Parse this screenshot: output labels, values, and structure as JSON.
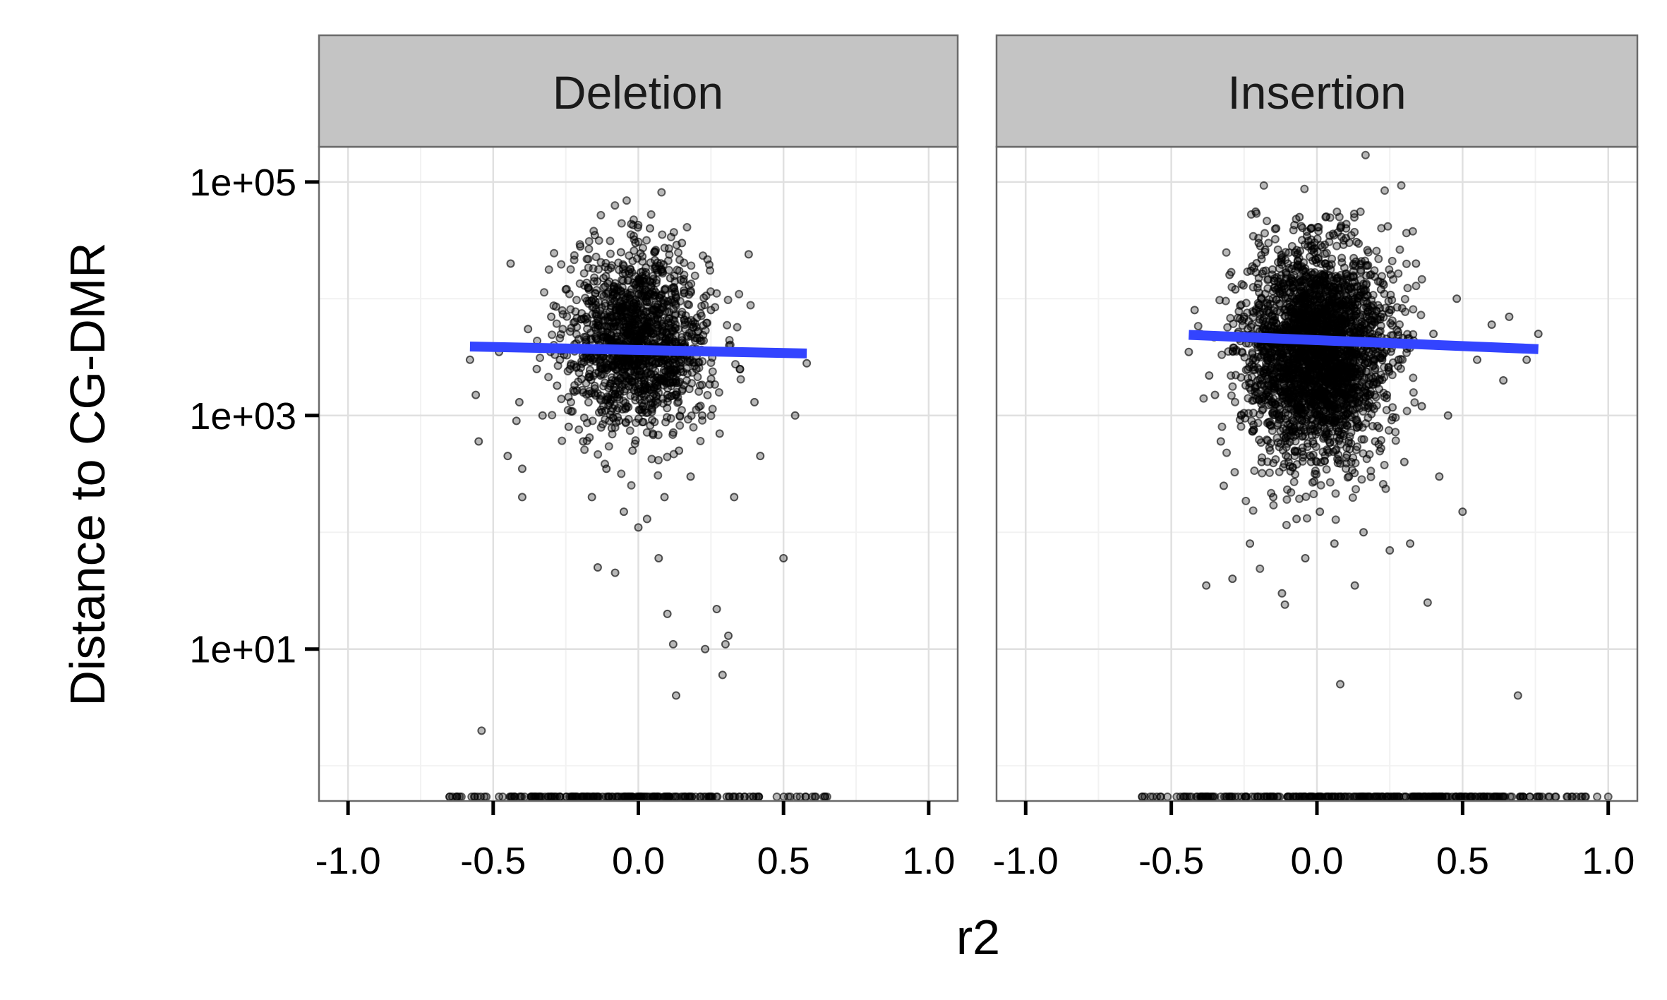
{
  "chart_data": {
    "type": "scatter",
    "layout": "faceted",
    "title": "",
    "xlabel": "r2",
    "ylabel": "Distance to CG-DMR",
    "xlim": [
      -1.1,
      1.1
    ],
    "x_ticks": [
      -1.0,
      -0.5,
      0.0,
      0.5,
      1.0
    ],
    "x_tick_labels": [
      "-1.0",
      "-0.5",
      "0.0",
      "0.5",
      "1.0"
    ],
    "y_scale": "log10",
    "ylim": [
      0.5,
      200000
    ],
    "y_ticks": [
      10,
      1000,
      100000
    ],
    "y_tick_labels": [
      "1e+01",
      "1e+03",
      "1e+05"
    ],
    "grid": true,
    "background": "white",
    "point_color": "#000000",
    "trend_color": "#3344ff",
    "panels": [
      {
        "label": "Deletion",
        "points_at_zero_distance": "many points along the bottom edge, r2 from about -0.65 to 0.65",
        "points": [
          {
            "x": -0.58,
            "y": 3000
          },
          {
            "x": -0.56,
            "y": 1500
          },
          {
            "x": -0.55,
            "y": 600
          },
          {
            "x": -0.54,
            "y": 2
          },
          {
            "x": -0.48,
            "y": 3500
          },
          {
            "x": -0.45,
            "y": 450
          },
          {
            "x": -0.44,
            "y": 20000
          },
          {
            "x": -0.42,
            "y": 900
          },
          {
            "x": -0.41,
            "y": 1300
          },
          {
            "x": -0.4,
            "y": 350
          },
          {
            "x": -0.4,
            "y": 200
          },
          {
            "x": -0.38,
            "y": 5500
          },
          {
            "x": -0.35,
            "y": 2500
          },
          {
            "x": -0.33,
            "y": 1000
          },
          {
            "x": -0.3,
            "y": 7000
          },
          {
            "x": -0.28,
            "y": 1800
          },
          {
            "x": -0.27,
            "y": 3000
          },
          {
            "x": -0.25,
            "y": 12000
          },
          {
            "x": -0.24,
            "y": 800
          },
          {
            "x": -0.22,
            "y": 1600
          },
          {
            "x": -0.2,
            "y": 28000
          },
          {
            "x": -0.19,
            "y": 600
          },
          {
            "x": -0.18,
            "y": 4000
          },
          {
            "x": -0.16,
            "y": 200
          },
          {
            "x": -0.15,
            "y": 35000
          },
          {
            "x": -0.14,
            "y": 50
          },
          {
            "x": -0.13,
            "y": 2200
          },
          {
            "x": -0.12,
            "y": 15000
          },
          {
            "x": -0.11,
            "y": 350
          },
          {
            "x": -0.1,
            "y": 900
          },
          {
            "x": -0.1,
            "y": 7000
          },
          {
            "x": -0.08,
            "y": 45
          },
          {
            "x": -0.07,
            "y": 3000
          },
          {
            "x": -0.06,
            "y": 25000
          },
          {
            "x": -0.05,
            "y": 150
          },
          {
            "x": -0.04,
            "y": 1200
          },
          {
            "x": -0.03,
            "y": 10000
          },
          {
            "x": -0.02,
            "y": 500
          },
          {
            "x": -0.01,
            "y": 30000
          },
          {
            "x": 0.0,
            "y": 110
          },
          {
            "x": 0.01,
            "y": 5000
          },
          {
            "x": 0.02,
            "y": 2000
          },
          {
            "x": 0.03,
            "y": 130
          },
          {
            "x": 0.04,
            "y": 40000
          },
          {
            "x": 0.05,
            "y": 700
          },
          {
            "x": 0.06,
            "y": 8000
          },
          {
            "x": 0.07,
            "y": 60
          },
          {
            "x": 0.08,
            "y": 3500
          },
          {
            "x": 0.09,
            "y": 200
          },
          {
            "x": 0.1,
            "y": 20
          },
          {
            "x": 0.1,
            "y": 1500
          },
          {
            "x": 0.11,
            "y": 15000
          },
          {
            "x": 0.12,
            "y": 11
          },
          {
            "x": 0.13,
            "y": 4
          },
          {
            "x": 0.14,
            "y": 500
          },
          {
            "x": 0.15,
            "y": 30000
          },
          {
            "x": 0.16,
            "y": 6000
          },
          {
            "x": 0.18,
            "y": 300
          },
          {
            "x": 0.2,
            "y": 2500
          },
          {
            "x": 0.22,
            "y": 1000
          },
          {
            "x": 0.23,
            "y": 10
          },
          {
            "x": 0.25,
            "y": 8000
          },
          {
            "x": 0.27,
            "y": 22
          },
          {
            "x": 0.28,
            "y": 700
          },
          {
            "x": 0.29,
            "y": 6
          },
          {
            "x": 0.3,
            "y": 11
          },
          {
            "x": 0.31,
            "y": 13
          },
          {
            "x": 0.33,
            "y": 200
          },
          {
            "x": 0.35,
            "y": 2500
          },
          {
            "x": 0.38,
            "y": 24000
          },
          {
            "x": 0.4,
            "y": 1300
          },
          {
            "x": 0.42,
            "y": 450
          },
          {
            "x": 0.5,
            "y": 60
          },
          {
            "x": 0.54,
            "y": 1000
          },
          {
            "x": 0.58,
            "y": 2800
          }
        ],
        "trend": {
          "x": [
            -0.58,
            0.58
          ],
          "y": [
            3900,
            3400
          ]
        }
      },
      {
        "label": "Insertion",
        "points_at_zero_distance": "many points along the bottom edge, r2 from about -0.6 to 1.0",
        "points": [
          {
            "x": -0.44,
            "y": 3500
          },
          {
            "x": -0.42,
            "y": 8000
          },
          {
            "x": -0.4,
            "y": 5000
          },
          {
            "x": -0.38,
            "y": 35
          },
          {
            "x": -0.37,
            "y": 2200
          },
          {
            "x": -0.35,
            "y": 1500
          },
          {
            "x": -0.33,
            "y": 600
          },
          {
            "x": -0.32,
            "y": 250
          },
          {
            "x": -0.3,
            "y": 16000
          },
          {
            "x": -0.29,
            "y": 40
          },
          {
            "x": -0.28,
            "y": 12000
          },
          {
            "x": -0.26,
            "y": 1000
          },
          {
            "x": -0.25,
            "y": 7000
          },
          {
            "x": -0.23,
            "y": 80
          },
          {
            "x": -0.22,
            "y": 3000
          },
          {
            "x": -0.2,
            "y": 30000
          },
          {
            "x": -0.19,
            "y": 400
          },
          {
            "x": -0.18,
            "y": 1800
          },
          {
            "x": -0.16,
            "y": 9000
          },
          {
            "x": -0.15,
            "y": 200
          },
          {
            "x": -0.14,
            "y": 40000
          },
          {
            "x": -0.13,
            "y": 1200
          },
          {
            "x": -0.12,
            "y": 5000
          },
          {
            "x": -0.12,
            "y": 30
          },
          {
            "x": -0.11,
            "y": 24
          },
          {
            "x": -0.1,
            "y": 20000
          },
          {
            "x": -0.09,
            "y": 800
          },
          {
            "x": -0.08,
            "y": 3000
          },
          {
            "x": -0.07,
            "y": 130
          },
          {
            "x": -0.06,
            "y": 50000
          },
          {
            "x": -0.05,
            "y": 1500
          },
          {
            "x": -0.04,
            "y": 60
          },
          {
            "x": -0.03,
            "y": 10000
          },
          {
            "x": -0.02,
            "y": 400
          },
          {
            "x": -0.01,
            "y": 25000
          },
          {
            "x": 0.0,
            "y": 2000
          },
          {
            "x": 0.01,
            "y": 150
          },
          {
            "x": 0.02,
            "y": 6000
          },
          {
            "x": 0.03,
            "y": 50000
          },
          {
            "x": 0.04,
            "y": 700
          },
          {
            "x": 0.05,
            "y": 3500
          },
          {
            "x": 0.06,
            "y": 80
          },
          {
            "x": 0.07,
            "y": 15000
          },
          {
            "x": 0.08,
            "y": 5
          },
          {
            "x": 0.09,
            "y": 1000
          },
          {
            "x": 0.1,
            "y": 40000
          },
          {
            "x": 0.11,
            "y": 300
          },
          {
            "x": 0.12,
            "y": 7000
          },
          {
            "x": 0.13,
            "y": 35
          },
          {
            "x": 0.14,
            "y": 2500
          },
          {
            "x": 0.15,
            "y": 20000
          },
          {
            "x": 0.16,
            "y": 100
          },
          {
            "x": 0.18,
            "y": 4000
          },
          {
            "x": 0.2,
            "y": 600
          },
          {
            "x": 0.22,
            "y": 12000
          },
          {
            "x": 0.24,
            "y": 1500
          },
          {
            "x": 0.25,
            "y": 70
          },
          {
            "x": 0.28,
            "y": 3000
          },
          {
            "x": 0.3,
            "y": 400
          },
          {
            "x": 0.32,
            "y": 80
          },
          {
            "x": 0.34,
            "y": 20000
          },
          {
            "x": 0.36,
            "y": 1200
          },
          {
            "x": 0.38,
            "y": 25
          },
          {
            "x": 0.4,
            "y": 5000
          },
          {
            "x": 0.42,
            "y": 300
          },
          {
            "x": 0.45,
            "y": 1000
          },
          {
            "x": 0.48,
            "y": 10000
          },
          {
            "x": 0.5,
            "y": 150
          },
          {
            "x": 0.55,
            "y": 3000
          },
          {
            "x": 0.6,
            "y": 6000
          },
          {
            "x": 0.64,
            "y": 2000
          },
          {
            "x": 0.66,
            "y": 7000
          },
          {
            "x": 0.69,
            "y": 4
          },
          {
            "x": 0.72,
            "y": 3000
          },
          {
            "x": 0.76,
            "y": 5000
          }
        ],
        "trend": {
          "x": [
            -0.44,
            0.76
          ],
          "y": [
            4900,
            3700
          ]
        }
      }
    ]
  }
}
